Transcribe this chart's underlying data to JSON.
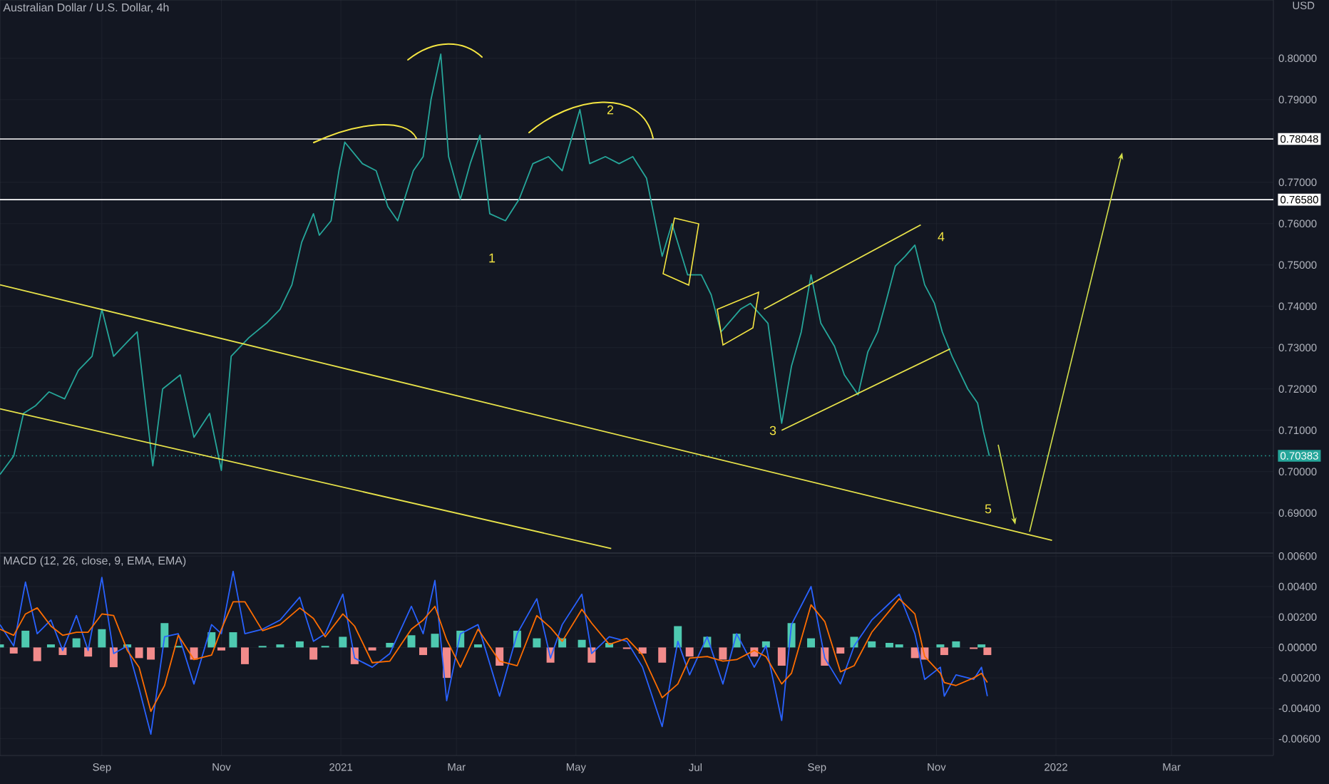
{
  "chart_data": [
    {
      "type": "line",
      "title": "Australian Dollar / U.S. Dollar, 4h",
      "xlim": [
        "2020-07-11",
        "2022-04-22"
      ],
      "xticks": [
        {
          "value": "2020-09-01",
          "label": null
        },
        {
          "value": "2020-11-01",
          "label": null
        },
        {
          "value": "2021-01-01",
          "label": null
        },
        {
          "value": "2021-03-01",
          "label": null
        },
        {
          "value": "2021-05-01",
          "label": null
        },
        {
          "value": "2021-07-01",
          "label": null
        },
        {
          "value": "2021-09-01",
          "label": null
        },
        {
          "value": "2021-11-01",
          "label": null
        },
        {
          "value": "2022-01-01",
          "label": null
        },
        {
          "value": "2022-03-01",
          "label": null
        }
      ],
      "ylim": [
        0.6803,
        0.8141
      ],
      "yticks": [
        {
          "value": 0.69,
          "label": "0.69000"
        },
        {
          "value": 0.7,
          "label": "0.70000"
        },
        {
          "value": 0.71,
          "label": "0.71000"
        },
        {
          "value": 0.72,
          "label": "0.72000"
        },
        {
          "value": 0.73,
          "label": "0.73000"
        },
        {
          "value": 0.74,
          "label": "0.74000"
        },
        {
          "value": 0.75,
          "label": "0.75000"
        },
        {
          "value": 0.76,
          "label": "0.76000"
        },
        {
          "value": 0.77,
          "label": "0.77000"
        },
        {
          "value": 0.79,
          "label": "0.79000"
        },
        {
          "value": 0.8,
          "label": "0.80000"
        }
      ],
      "tick_labels": "y",
      "grid": true,
      "series": [
        {
          "color": "#26a69a",
          "x": [
            "2020-07-11",
            "2020-07-18",
            "2020-07-23",
            "2020-07-29",
            "2020-08-05",
            "2020-08-13",
            "2020-08-20",
            "2020-08-27",
            "2020-09-01",
            "2020-09-07",
            "2020-09-14",
            "2020-09-19",
            "2020-09-27",
            "2020-10-02",
            "2020-10-11",
            "2020-10-18",
            "2020-10-26",
            "2020-11-01",
            "2020-11-06",
            "2020-11-15",
            "2020-11-24",
            "2020-12-01",
            "2020-12-07",
            "2020-12-12",
            "2020-12-18",
            "2020-12-21",
            "2020-12-27",
            "2020-12-31",
            "2021-01-03",
            "2021-01-12",
            "2021-01-19",
            "2021-01-25",
            "2021-01-30",
            "2021-02-07",
            "2021-02-12",
            "2021-02-16",
            "2021-02-21",
            "2021-02-25",
            "2021-03-03",
            "2021-03-08",
            "2021-03-13",
            "2021-03-18",
            "2021-03-26",
            "2021-04-02",
            "2021-04-09",
            "2021-04-17",
            "2021-04-24",
            "2021-05-03",
            "2021-05-08",
            "2021-05-16",
            "2021-05-23",
            "2021-05-30",
            "2021-06-06",
            "2021-06-14",
            "2021-06-19",
            "2021-06-27",
            "2021-07-04",
            "2021-07-09",
            "2021-07-14",
            "2021-07-24",
            "2021-07-29",
            "2021-08-07",
            "2021-08-14",
            "2021-08-19",
            "2021-08-24",
            "2021-08-29",
            "2021-09-03",
            "2021-09-10",
            "2021-09-15",
            "2021-09-22",
            "2021-09-27",
            "2021-10-02",
            "2021-10-06",
            "2021-10-11",
            "2021-10-16",
            "2021-10-21",
            "2021-10-26",
            "2021-10-31",
            "2021-11-04",
            "2021-11-09",
            "2021-11-17",
            "2021-11-22",
            "2021-11-25",
            "2021-11-28"
          ],
          "values": [
            0.6993,
            0.7038,
            0.7141,
            0.7159,
            0.7193,
            0.7176,
            0.7245,
            0.7279,
            0.7393,
            0.7279,
            0.7314,
            0.7338,
            0.7014,
            0.72,
            0.7234,
            0.7083,
            0.7141,
            0.7003,
            0.7279,
            0.7324,
            0.7359,
            0.7393,
            0.7452,
            0.7555,
            0.7624,
            0.7572,
            0.7607,
            0.7728,
            0.7797,
            0.7745,
            0.7728,
            0.7641,
            0.7607,
            0.7728,
            0.7762,
            0.79,
            0.801,
            0.7762,
            0.7659,
            0.7745,
            0.7814,
            0.7624,
            0.7607,
            0.7659,
            0.7745,
            0.7762,
            0.7728,
            0.7876,
            0.7745,
            0.7762,
            0.7745,
            0.7762,
            0.771,
            0.7521,
            0.76,
            0.7476,
            0.7476,
            0.7428,
            0.7338,
            0.7393,
            0.7407,
            0.7359,
            0.7117,
            0.7255,
            0.7338,
            0.7476,
            0.7359,
            0.7303,
            0.7234,
            0.7186,
            0.729,
            0.7338,
            0.7407,
            0.7497,
            0.7521,
            0.7548,
            0.7452,
            0.7407,
            0.7338,
            0.7279,
            0.72,
            0.7166,
            0.7097,
            0.7038
          ]
        },
        {
          "color": "#e8e34a",
          "x": [
            "2020-07-11",
            "2021-05-19"
          ],
          "values": [
            0.7152,
            0.6814
          ]
        },
        {
          "color": "#e8e34a",
          "x": [
            "2020-07-11",
            "2021-12-30"
          ],
          "values": [
            0.7452,
            0.6834
          ]
        },
        {
          "color": "#e8e34a",
          "x": [
            "2021-08-05",
            "2021-10-24"
          ],
          "values": [
            0.7393,
            0.7597
          ]
        },
        {
          "color": "#e8e34a",
          "x": [
            "2021-08-14",
            "2021-11-08"
          ],
          "values": [
            0.71,
            0.7297
          ]
        }
      ],
      "ref_lines": [
        {
          "axis": "y",
          "value": 0.78048,
          "label": "0.78048",
          "color": "#ffffff",
          "line_style": "solid"
        },
        {
          "axis": "y",
          "value": 0.7658,
          "label": "0.76580",
          "color": "#ffffff",
          "line_style": "solid"
        },
        {
          "axis": "y",
          "value": 0.70383,
          "label": "0.70383",
          "color": "#26a69a",
          "line_style": "dotted"
        }
      ],
      "annotations": [
        "USD",
        "1",
        "2",
        "3",
        "4",
        "5"
      ]
    },
    {
      "type": "line",
      "title": "MACD (12, 26, close, 9, EMA, EMA)",
      "xlim": [
        "2020-07-11",
        "2022-04-22"
      ],
      "xticks": [
        {
          "value": "2020-09-01",
          "label": "Sep"
        },
        {
          "value": "2020-11-01",
          "label": "Nov"
        },
        {
          "value": "2021-01-01",
          "label": "2021"
        },
        {
          "value": "2021-03-01",
          "label": "Mar"
        },
        {
          "value": "2021-05-01",
          "label": "May"
        },
        {
          "value": "2021-07-01",
          "label": "Jul"
        },
        {
          "value": "2021-09-01",
          "label": "Sep"
        },
        {
          "value": "2021-11-01",
          "label": "Nov"
        },
        {
          "value": "2022-01-01",
          "label": "2022"
        },
        {
          "value": "2022-03-01",
          "label": "Mar"
        }
      ],
      "ylim": [
        -0.0071,
        0.0062
      ],
      "yticks": [
        {
          "value": -0.006,
          "label": "-0.00600"
        },
        {
          "value": -0.004,
          "label": "-0.00400"
        },
        {
          "value": -0.002,
          "label": "-0.00200"
        },
        {
          "value": 0,
          "label": "0.00000"
        },
        {
          "value": 0.002,
          "label": "0.00200"
        },
        {
          "value": 0.004,
          "label": "0.00400"
        },
        {
          "value": 0.006,
          "label": "0.00600"
        }
      ],
      "grid": true,
      "x": [
        "2020-07-11",
        "2020-07-18",
        "2020-07-24",
        "2020-07-30",
        "2020-08-06",
        "2020-08-12",
        "2020-08-19",
        "2020-08-25",
        "2020-09-01",
        "2020-09-07",
        "2020-09-14",
        "2020-09-20",
        "2020-09-26",
        "2020-10-03",
        "2020-10-10",
        "2020-10-18",
        "2020-10-27",
        "2020-11-01",
        "2020-11-07",
        "2020-11-13",
        "2020-11-22",
        "2020-12-01",
        "2020-12-11",
        "2020-12-18",
        "2020-12-24",
        "2021-01-02",
        "2021-01-08",
        "2021-01-17",
        "2021-01-26",
        "2021-02-06",
        "2021-02-12",
        "2021-02-18",
        "2021-02-24",
        "2021-03-03",
        "2021-03-12",
        "2021-03-23",
        "2021-04-01",
        "2021-04-11",
        "2021-04-18",
        "2021-04-24",
        "2021-05-04",
        "2021-05-09",
        "2021-05-18",
        "2021-05-27",
        "2021-06-04",
        "2021-06-14",
        "2021-06-22",
        "2021-06-28",
        "2021-07-07",
        "2021-07-15",
        "2021-07-22",
        "2021-07-31",
        "2021-08-06",
        "2021-08-14",
        "2021-08-19",
        "2021-08-29",
        "2021-09-05",
        "2021-09-13",
        "2021-09-20",
        "2021-09-29",
        "2021-10-08",
        "2021-10-13",
        "2021-10-21",
        "2021-10-26",
        "2021-11-03",
        "2021-11-05",
        "2021-11-11",
        "2021-11-20",
        "2021-11-24",
        "2021-11-27"
      ],
      "series": [
        {
          "type": "bar",
          "values": [
            0.0002,
            -0.0004,
            0.0011,
            -0.0009,
            0.0002,
            -0.0005,
            0.0006,
            -0.0006,
            0.0012,
            -0.0013,
            0.0002,
            -0.0007,
            -0.0008,
            0.0016,
            0.0001,
            -0.0008,
            0.001,
            -0.0002,
            0.001,
            -0.0011,
            0.0001,
            0.0002,
            0.0004,
            -0.0008,
            0.0001,
            0.0007,
            -0.0011,
            -0.0002,
            0.0003,
            0.0008,
            -0.0005,
            0.0009,
            -0.002,
            0.0011,
            0.0002,
            -0.0012,
            0.0011,
            0.0006,
            -0.001,
            0.0006,
            0.0005,
            -0.001,
            0.0003,
            -0.0001,
            -0.0004,
            -0.001,
            0.0014,
            -0.0006,
            0.0007,
            -0.0008,
            0.0009,
            -0.0006,
            0.0004,
            -0.0012,
            0.0016,
            0.0006,
            -0.0012,
            -0.0004,
            0.0007,
            0.0004,
            0.0003,
            0.0002,
            -0.0007,
            -0.0008,
            0.0002,
            -0.0005,
            0.0004,
            -0.0001,
            0.0002,
            -0.0005
          ],
          "colors": [
            "#4ec9b0",
            "#f28b8b",
            "#4ec9b0",
            "#f28b8b",
            "#4ec9b0",
            "#f28b8b",
            "#4ec9b0",
            "#f28b8b",
            "#4ec9b0",
            "#f28b8b",
            "#4ec9b0",
            "#f28b8b",
            "#f28b8b",
            "#4ec9b0",
            "#4ec9b0",
            "#f28b8b",
            "#4ec9b0",
            "#f28b8b",
            "#4ec9b0",
            "#f28b8b",
            "#4ec9b0",
            "#4ec9b0",
            "#4ec9b0",
            "#f28b8b",
            "#4ec9b0",
            "#4ec9b0",
            "#f28b8b",
            "#f28b8b",
            "#4ec9b0",
            "#4ec9b0",
            "#f28b8b",
            "#4ec9b0",
            "#f28b8b",
            "#4ec9b0",
            "#4ec9b0",
            "#f28b8b",
            "#4ec9b0",
            "#4ec9b0",
            "#f28b8b",
            "#4ec9b0",
            "#4ec9b0",
            "#f28b8b",
            "#4ec9b0",
            "#f28b8b",
            "#f28b8b",
            "#f28b8b",
            "#4ec9b0",
            "#f28b8b",
            "#4ec9b0",
            "#f28b8b",
            "#4ec9b0",
            "#f28b8b",
            "#4ec9b0",
            "#f28b8b",
            "#4ec9b0",
            "#4ec9b0",
            "#f28b8b",
            "#f28b8b",
            "#4ec9b0",
            "#4ec9b0",
            "#4ec9b0",
            "#4ec9b0",
            "#f28b8b",
            "#f28b8b",
            "#4ec9b0",
            "#f28b8b",
            "#4ec9b0",
            "#f28b8b",
            "#4ec9b0",
            "#f28b8b"
          ]
        },
        {
          "color": "#2962ff",
          "values": [
            0.0015,
            0.0001,
            0.0043,
            0.0009,
            0.0018,
            -0.0002,
            0.0021,
            -0.0002,
            0.0046,
            -0.0004,
            0.0001,
            -0.0027,
            -0.0057,
            0.0007,
            0.0009,
            -0.0024,
            0.0015,
            0.0009,
            0.005,
            0.0009,
            0.0012,
            0.0018,
            0.0033,
            0.0004,
            0.0009,
            0.0035,
            -0.0007,
            -0.0013,
            -0.0004,
            0.0027,
            0.0009,
            0.0044,
            -0.0035,
            0.0009,
            0.0015,
            -0.0032,
            0.0009,
            0.0032,
            -0.0007,
            0.0015,
            0.0035,
            -0.0004,
            0.0007,
            0.0004,
            -0.0013,
            -0.0052,
            0.0004,
            -0.0018,
            0.0007,
            -0.0024,
            0.0009,
            -0.0013,
            0.0001,
            -0.0048,
            0.0015,
            0.004,
            -0.0007,
            -0.0024,
            0.0001,
            0.0018,
            0.0029,
            0.0035,
            0.0009,
            -0.0021,
            -0.0013,
            -0.0032,
            -0.0018,
            -0.0021,
            -0.0013,
            -0.0032
          ]
        },
        {
          "color": "#ff6d00",
          "values": [
            0.0012,
            0.0008,
            0.0022,
            0.0026,
            0.0014,
            0.0008,
            0.001,
            0.001,
            0.0022,
            0.0021,
            -0.0002,
            -0.0013,
            -0.0042,
            -0.0025,
            0.0008,
            -0.0008,
            -0.0005,
            0.0012,
            0.003,
            0.003,
            0.0011,
            0.0015,
            0.0026,
            0.0019,
            0.0007,
            0.0022,
            0.0014,
            -0.001,
            -0.0009,
            0.0012,
            0.0018,
            0.0027,
            0.0005,
            -0.0013,
            0.0012,
            -0.0009,
            -0.0012,
            0.0021,
            0.0013,
            0.0004,
            0.0025,
            0.0016,
            0.0002,
            0.0006,
            -0.0005,
            -0.0033,
            -0.0024,
            -0.0007,
            -0.0006,
            -0.0009,
            -0.0008,
            -0.0002,
            -0.0006,
            -0.0024,
            -0.0017,
            0.0028,
            0.0017,
            -0.0016,
            -0.0012,
            0.001,
            0.0024,
            0.0032,
            0.0022,
            -0.0006,
            -0.0017,
            -0.0023,
            -0.0025,
            -0.002,
            -0.0017,
            -0.0023
          ]
        }
      ]
    }
  ]
}
